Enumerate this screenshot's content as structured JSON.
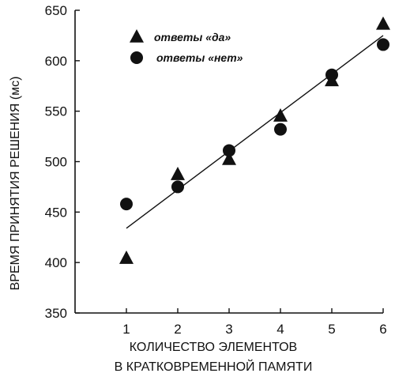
{
  "chart_data": {
    "type": "scatter",
    "xlabel_line1": "КОЛИЧЕСТВО ЭЛЕМЕНТОВ",
    "xlabel_line2": "В КРАТКОВРЕМЕННОЙ ПАМЯТИ",
    "ylabel": "ВРЕМЯ ПРИНЯТИЯ РЕШЕНИЯ (мс)",
    "xlim": [
      0,
      6
    ],
    "ylim": [
      350,
      650
    ],
    "xticks": [
      1,
      2,
      3,
      4,
      5,
      6
    ],
    "yticks": [
      350,
      400,
      450,
      500,
      550,
      600,
      650
    ],
    "series": [
      {
        "name": "ответы «да»",
        "marker": "triangle",
        "points": [
          [
            1,
            404
          ],
          [
            2,
            487
          ],
          [
            3,
            502
          ],
          [
            4,
            545
          ],
          [
            5,
            580
          ],
          [
            6,
            636
          ]
        ]
      },
      {
        "name": "ответы «нет»",
        "marker": "circle",
        "points": [
          [
            1,
            458
          ],
          [
            2,
            475
          ],
          [
            3,
            511
          ],
          [
            4,
            532
          ],
          [
            5,
            586
          ],
          [
            6,
            616
          ]
        ]
      }
    ],
    "trend_line": {
      "x": [
        1,
        6
      ],
      "y": [
        434,
        625
      ]
    },
    "legend_position": "top-left",
    "grid": false
  }
}
